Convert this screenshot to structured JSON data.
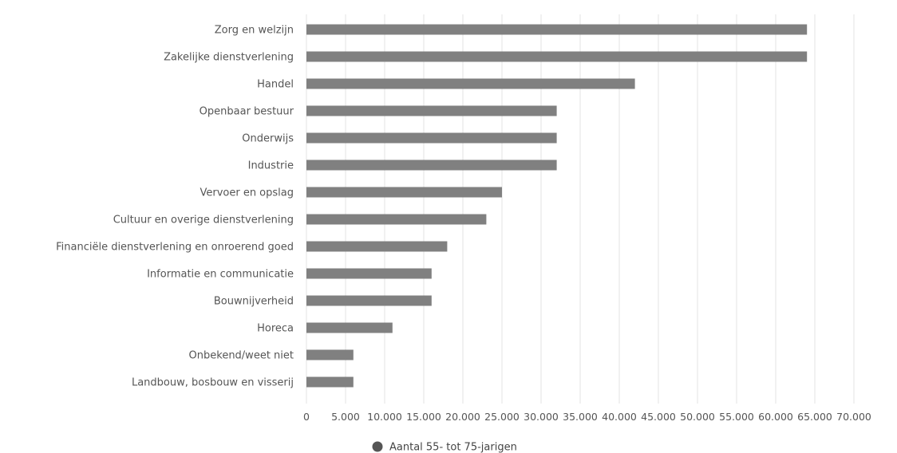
{
  "chart_data": {
    "type": "bar",
    "orientation": "horizontal",
    "categories": [
      "Zorg en welzijn",
      "Zakelijke dienstverlening",
      "Handel",
      "Openbaar bestuur",
      "Onderwijs",
      "Industrie",
      "Vervoer en opslag",
      "Cultuur en overige dienstverlening",
      "Financiële dienstverlening en onroerend goed",
      "Informatie en communicatie",
      "Bouwnijverheid",
      "Horeca",
      "Onbekend/weet niet",
      "Landbouw, bosbouw en visserij"
    ],
    "series": [
      {
        "name": "Aantal 55- tot 75-jarigen",
        "color": "#808080",
        "values": [
          64000,
          64000,
          42000,
          32000,
          32000,
          32000,
          25000,
          23000,
          18000,
          16000,
          16000,
          11000,
          6000,
          6000
        ]
      }
    ],
    "xlim": [
      0,
      70000
    ],
    "xticks": [
      0,
      5000,
      10000,
      15000,
      20000,
      25000,
      30000,
      35000,
      40000,
      45000,
      50000,
      55000,
      60000,
      65000,
      70000
    ],
    "xtick_labels": [
      "0",
      "5.000",
      "10.000",
      "15.000",
      "20.000",
      "25.000",
      "30.000",
      "35.000",
      "40.000",
      "45.000",
      "50.000",
      "55.000",
      "60.000",
      "65.000",
      "70.000"
    ],
    "grid": "vertical",
    "legend": {
      "position": "bottom-center",
      "marker": "circle",
      "marker_color": "#555555"
    }
  }
}
